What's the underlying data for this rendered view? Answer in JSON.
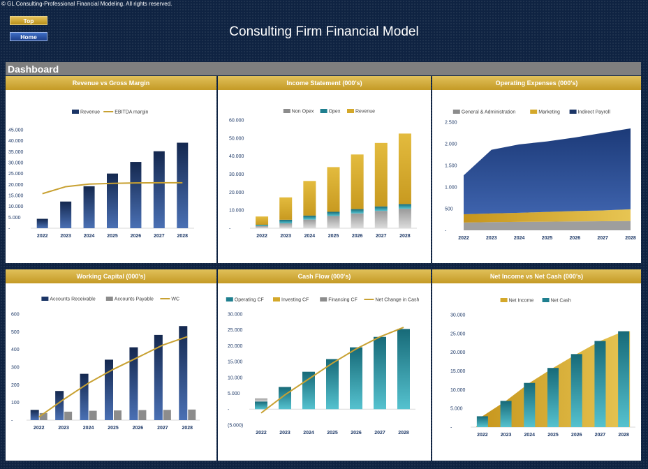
{
  "copyright": "© GL Consulting-Professional Financial Modeling. All rights reserved.",
  "nav": {
    "top_label": "Top",
    "home_label": "Home"
  },
  "title": "Consulting Firm Financial Model",
  "section_title": "Dashboard",
  "colors": {
    "navy": "#1b3566",
    "navy_light": "#3c64a8",
    "gold": "#d4a82a",
    "gold_light": "#e8c552",
    "grey": "#8c8c8c",
    "teal": "#1f7f8f",
    "teal_light": "#3aaab8",
    "line_gold": "#c8a132"
  },
  "chart_data": [
    {
      "id": "rev",
      "title": "Revenue vs Gross Margin",
      "type": "bar",
      "categories": [
        "2022",
        "2023",
        "2024",
        "2025",
        "2026",
        "2027",
        "2028"
      ],
      "series": [
        {
          "name": "Revenue",
          "kind": "bar",
          "values": [
            4300,
            12200,
            19200,
            25000,
            30300,
            35200,
            39100
          ]
        },
        {
          "name": "EBITDA margin",
          "kind": "line",
          "values": [
            15800,
            19000,
            20200,
            20500,
            20700,
            20800,
            20800
          ]
        }
      ],
      "yticks": [
        "-",
        "5.000",
        "10.000",
        "15.000",
        "20.000",
        "25.000",
        "30.000",
        "35.000",
        "40.000",
        "45.000"
      ],
      "ylim": [
        0,
        45000
      ]
    },
    {
      "id": "inc",
      "title": "Income Statement (000's)",
      "type": "bar",
      "stacked": true,
      "categories": [
        "2022",
        "2023",
        "2024",
        "2025",
        "2026",
        "2027",
        "2028"
      ],
      "series": [
        {
          "name": "Non Opex",
          "values": [
            1200,
            2700,
            4800,
            6800,
            8200,
            9600,
            10800
          ]
        },
        {
          "name": "Opex",
          "values": [
            700,
            2000,
            2200,
            2300,
            2400,
            2500,
            2600
          ]
        },
        {
          "name": "Revenue",
          "values": [
            4600,
            12400,
            19200,
            24800,
            30300,
            35200,
            39100
          ]
        }
      ],
      "yticks": [
        "-",
        "10.000",
        "20.000",
        "30.000",
        "40.000",
        "50.000",
        "60.000"
      ],
      "ylim": [
        0,
        60000
      ]
    },
    {
      "id": "opx",
      "title": "Operating Expenses (000's)",
      "type": "area",
      "stacked": true,
      "categories": [
        "2022",
        "2023",
        "2024",
        "2025",
        "2026",
        "2027",
        "2028"
      ],
      "series": [
        {
          "name": "General & Administration",
          "values": [
            180,
            190,
            195,
            200,
            205,
            210,
            215
          ]
        },
        {
          "name": "Marketing",
          "values": [
            190,
            200,
            210,
            225,
            240,
            250,
            270
          ]
        },
        {
          "name": "Indirect Payroll",
          "values": [
            900,
            1470,
            1580,
            1630,
            1700,
            1790,
            1870
          ]
        }
      ],
      "yticks": [
        "-",
        "500",
        "1.000",
        "1.500",
        "2.000",
        "2.500"
      ],
      "ylim": [
        0,
        2500
      ]
    },
    {
      "id": "wc",
      "title": "Working Capital (000's)",
      "type": "bar",
      "categories": [
        "2022",
        "2023",
        "2024",
        "2025",
        "2026",
        "2027",
        "2028"
      ],
      "series": [
        {
          "name": "Accounts Receivable",
          "kind": "bar",
          "values": [
            58,
            165,
            262,
            342,
            412,
            482,
            532
          ]
        },
        {
          "name": "Accounts Payable",
          "kind": "bar",
          "values": [
            40,
            48,
            53,
            55,
            57,
            58,
            60
          ]
        },
        {
          "name": "WC",
          "kind": "line",
          "values": [
            18,
            117,
            209,
            287,
            355,
            424,
            472
          ]
        }
      ],
      "yticks": [
        "-",
        "100",
        "200",
        "300",
        "400",
        "500",
        "600"
      ],
      "ylim": [
        0,
        600
      ]
    },
    {
      "id": "cf",
      "title": "Cash Flow (000's)",
      "type": "bar",
      "stacked": true,
      "categories": [
        "2022",
        "2023",
        "2024",
        "2025",
        "2026",
        "2027",
        "2028"
      ],
      "series": [
        {
          "name": "Operating CF",
          "kind": "bar",
          "values": [
            2400,
            7000,
            11800,
            15800,
            19500,
            22800,
            25300
          ]
        },
        {
          "name": "Investing CF",
          "kind": "bar",
          "values": [
            0,
            0,
            0,
            0,
            0,
            0,
            0
          ]
        },
        {
          "name": "Financing CF",
          "kind": "bar",
          "values": [
            1000,
            0,
            0,
            0,
            0,
            0,
            0
          ]
        },
        {
          "name": "Net Change in Cash",
          "kind": "line",
          "values": [
            -1200,
            4500,
            9500,
            14500,
            19000,
            22800,
            25800
          ]
        }
      ],
      "yticks": [
        "(5.000)",
        "-",
        "5.000",
        "10.000",
        "15.000",
        "20.000",
        "25.000",
        "30.000"
      ],
      "ylim": [
        -5000,
        30000
      ]
    },
    {
      "id": "ni",
      "title": "Net Income vs Net Cash (000's)",
      "type": "bar",
      "categories": [
        "2022",
        "2023",
        "2024",
        "2025",
        "2026",
        "2027",
        "2028"
      ],
      "series": [
        {
          "name": "Net Income",
          "kind": "area",
          "values": [
            2900,
            7000,
            11800,
            15800,
            19500,
            23000,
            25600
          ]
        },
        {
          "name": "Net Cash",
          "kind": "bar",
          "values": [
            2900,
            7000,
            11800,
            15800,
            19500,
            23000,
            25600
          ]
        }
      ],
      "yticks": [
        "-",
        "5.000",
        "10.000",
        "15.000",
        "20.000",
        "25.000",
        "30.000"
      ],
      "ylim": [
        0,
        30000
      ]
    }
  ]
}
